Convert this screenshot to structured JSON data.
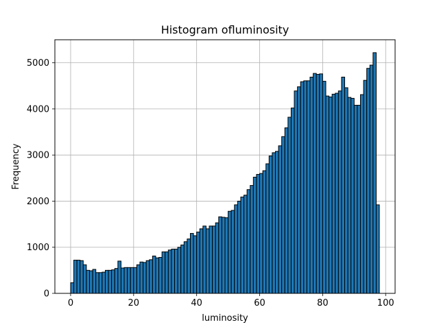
{
  "chart_data": {
    "type": "bar",
    "title": "Histogram ofluminosity",
    "xlabel": "luminosity",
    "ylabel": "Frequency",
    "xlim": [
      -5,
      103
    ],
    "ylim": [
      0,
      5500
    ],
    "xticks": [
      0,
      20,
      40,
      60,
      80,
      100
    ],
    "yticks": [
      0,
      1000,
      2000,
      3000,
      4000,
      5000
    ],
    "grid": true,
    "bar_color": "#1f77b4",
    "edge_color": "#000000",
    "bin_start": 0,
    "bin_width": 1,
    "values": [
      230,
      720,
      720,
      710,
      620,
      500,
      490,
      520,
      450,
      450,
      460,
      500,
      500,
      510,
      540,
      700,
      550,
      560,
      560,
      560,
      560,
      620,
      680,
      670,
      710,
      730,
      810,
      770,
      780,
      900,
      900,
      940,
      960,
      960,
      1000,
      1050,
      1120,
      1180,
      1300,
      1250,
      1330,
      1400,
      1460,
      1400,
      1460,
      1460,
      1530,
      1660,
      1650,
      1640,
      1780,
      1800,
      1920,
      2000,
      2090,
      2130,
      2250,
      2340,
      2520,
      2580,
      2600,
      2660,
      2810,
      2980,
      3050,
      3080,
      3200,
      3400,
      3590,
      3820,
      4020,
      4390,
      4480,
      4590,
      4610,
      4610,
      4690,
      4770,
      4750,
      4760,
      4600,
      4280,
      4260,
      4320,
      4340,
      4390,
      4690,
      4460,
      4250,
      4230,
      4080,
      4080,
      4310,
      4620,
      4880,
      4950,
      5220,
      1920
    ]
  }
}
